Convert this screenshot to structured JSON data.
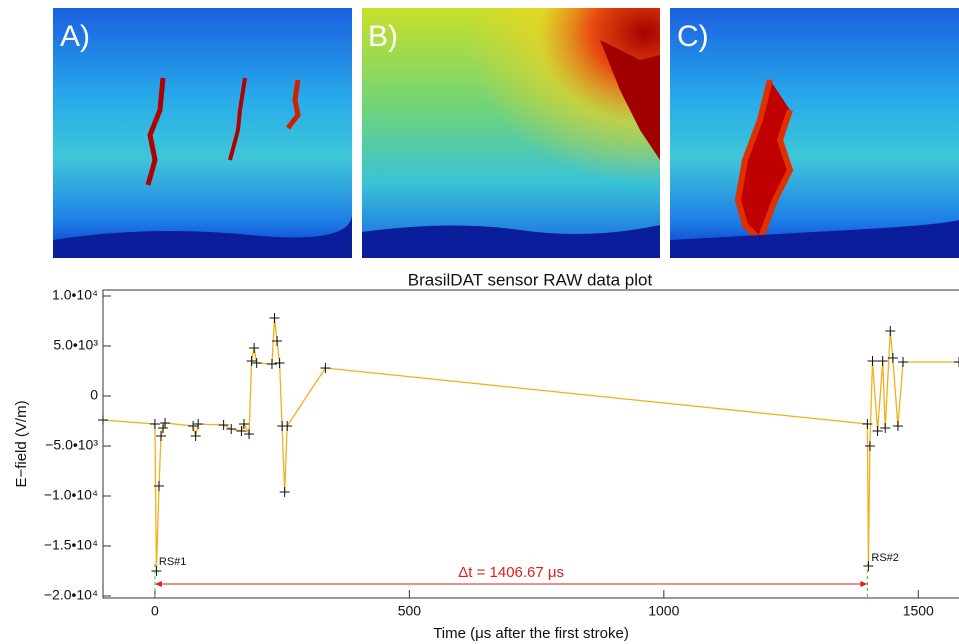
{
  "panels": [
    {
      "label": "A)"
    },
    {
      "label": "B)"
    },
    {
      "label": "C)"
    }
  ],
  "chart_data": {
    "type": "line",
    "title": "BrasilDAT sensor RAW data plot",
    "x_label": "Time (μs after the first stroke)",
    "y_label": "E−field (V/m)",
    "x": [
      -102,
      0,
      3,
      8,
      12,
      16,
      20,
      75,
      80,
      85,
      135,
      150,
      170,
      175,
      185,
      190,
      195,
      200,
      230,
      235,
      240,
      245,
      250,
      255,
      260,
      335,
      1400,
      1402,
      1405,
      1410,
      1420,
      1430,
      1435,
      1445,
      1450,
      1460,
      1470,
      1580
    ],
    "values": [
      -2400,
      -2800,
      -17500,
      -9000,
      -4000,
      -3200,
      -2700,
      -3000,
      -4000,
      -2800,
      -2900,
      -3300,
      -3500,
      -2800,
      -3800,
      3500,
      4800,
      3300,
      3200,
      7800,
      5500,
      3300,
      -3000,
      -9600,
      -3000,
      2800,
      -2800,
      -17000,
      -5000,
      3500,
      -3500,
      3500,
      -3200,
      6500,
      3800,
      -3000,
      3400,
      3400
    ],
    "color": "#f2b01e",
    "xlim": [
      -102,
      1580
    ],
    "ylim": [
      -20200,
      10600
    ],
    "xticks": [
      0,
      500,
      1000,
      1500
    ],
    "yticks": [
      {
        "value": 10000,
        "label": "1.0•10⁴"
      },
      {
        "value": 5000,
        "label": "5.0•10³"
      },
      0,
      {
        "value": -5000,
        "label": "−5.0•10³"
      },
      {
        "value": -10000,
        "label": "−1.0•10⁴"
      },
      {
        "value": -15000,
        "label": "−1.5•10⁴"
      },
      {
        "value": -20000,
        "label": "−2.0•10⁴"
      }
    ],
    "annotations": [
      "RS#1",
      "RS#2",
      "Δt = 1406.67 μs"
    ],
    "annotation_color": "#e0201b"
  }
}
